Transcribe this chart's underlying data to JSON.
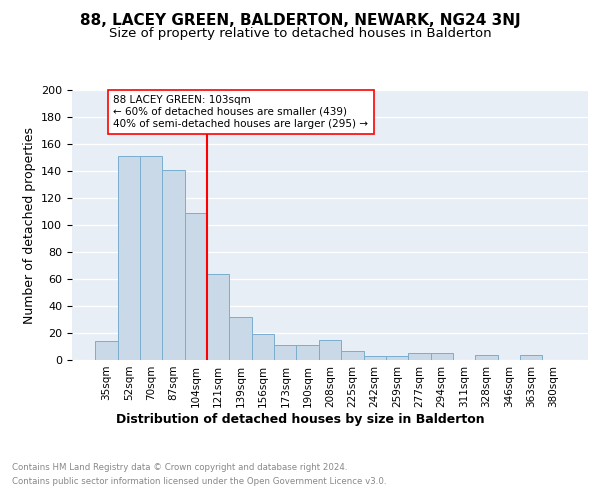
{
  "title": "88, LACEY GREEN, BALDERTON, NEWARK, NG24 3NJ",
  "subtitle": "Size of property relative to detached houses in Balderton",
  "xlabel": "Distribution of detached houses by size in Balderton",
  "ylabel": "Number of detached properties",
  "bar_labels": [
    "35sqm",
    "52sqm",
    "70sqm",
    "87sqm",
    "104sqm",
    "121sqm",
    "139sqm",
    "156sqm",
    "173sqm",
    "190sqm",
    "208sqm",
    "225sqm",
    "242sqm",
    "259sqm",
    "277sqm",
    "294sqm",
    "311sqm",
    "328sqm",
    "346sqm",
    "363sqm",
    "380sqm"
  ],
  "bar_values": [
    14,
    151,
    151,
    141,
    109,
    64,
    32,
    19,
    11,
    11,
    15,
    7,
    3,
    3,
    5,
    5,
    0,
    4,
    0,
    4,
    0
  ],
  "bar_color": "#c9d9e8",
  "bar_edge_color": "#7aadcf",
  "background_color": "#e8eef5",
  "vline_color": "red",
  "annotation_title": "88 LACEY GREEN: 103sqm",
  "annotation_line1": "← 60% of detached houses are smaller (439)",
  "annotation_line2": "40% of semi-detached houses are larger (295) →",
  "annotation_box_color": "white",
  "annotation_box_edge": "red",
  "ylim": [
    0,
    200
  ],
  "yticks": [
    0,
    20,
    40,
    60,
    80,
    100,
    120,
    140,
    160,
    180,
    200
  ],
  "footer_line1": "Contains HM Land Registry data © Crown copyright and database right 2024.",
  "footer_line2": "Contains public sector information licensed under the Open Government Licence v3.0.",
  "footer_color": "#888888",
  "title_fontsize": 11,
  "subtitle_fontsize": 9.5,
  "ylabel_fontsize": 9,
  "xlabel_fontsize": 9
}
